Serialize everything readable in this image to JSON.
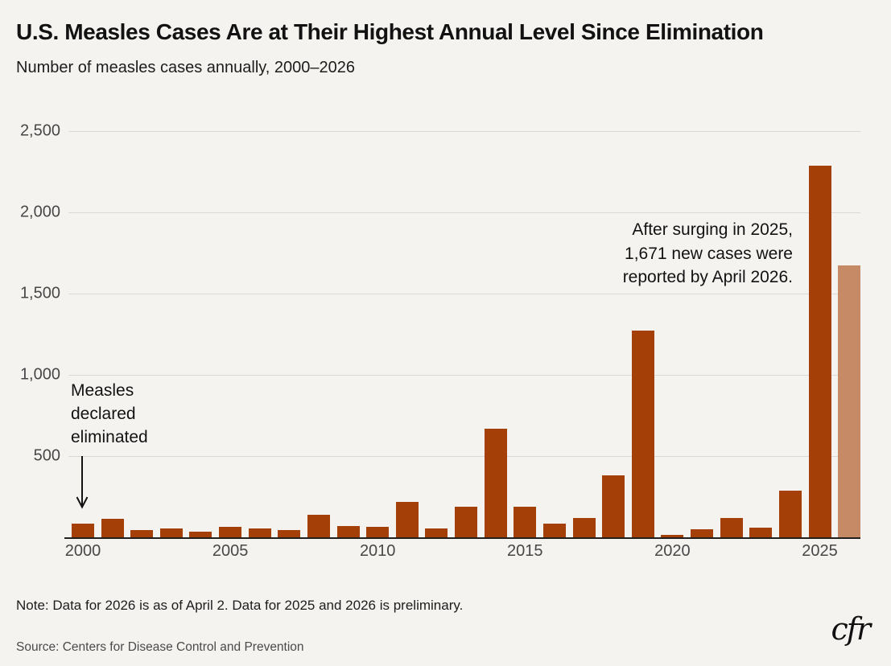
{
  "header": {
    "title": "U.S. Measles Cases Are at Their Highest Annual Level Since Elimination",
    "subtitle": "Number of measles cases annually, 2000–2026"
  },
  "chart_data": {
    "type": "bar",
    "title": "U.S. Measles Cases Are at Their Highest Annual Level Since Elimination",
    "subtitle": "Number of measles cases annually, 2000–2026",
    "x": [
      2000,
      2001,
      2002,
      2003,
      2004,
      2005,
      2006,
      2007,
      2008,
      2009,
      2010,
      2011,
      2012,
      2013,
      2014,
      2015,
      2016,
      2017,
      2018,
      2019,
      2020,
      2021,
      2022,
      2023,
      2024,
      2025,
      2026
    ],
    "values": [
      86,
      116,
      44,
      56,
      37,
      66,
      55,
      43,
      140,
      71,
      63,
      220,
      55,
      187,
      667,
      188,
      86,
      120,
      381,
      1274,
      13,
      49,
      121,
      59,
      285,
      2285,
      1671
    ],
    "xlabel": "",
    "ylabel": "",
    "ylim": [
      0,
      2500
    ],
    "ytick_values": [
      500,
      1000,
      1500,
      2000,
      2500
    ],
    "ytick_labels": [
      "500",
      "1,000",
      "1,500",
      "2,000",
      "2,500"
    ],
    "xtick_indices": [
      0,
      5,
      10,
      15,
      20,
      25
    ],
    "xtick_labels": [
      "2000",
      "2005",
      "2010",
      "2015",
      "2020",
      "2025"
    ],
    "grid": "horizontal",
    "legend": "none",
    "bar_color_default": "#a43f08",
    "bar_color_final_year": "#c78a66"
  },
  "annotations": {
    "eliminated": {
      "lines": [
        "Measles",
        "declared",
        "eliminated"
      ],
      "target_year": "2000"
    },
    "surge": {
      "lines": [
        "After surging in 2025,",
        "1,671 new cases were",
        "reported by April 2026."
      ]
    }
  },
  "footer": {
    "note": "Note: Data for 2026 is as of April 2. Data for 2025 and 2026 is preliminary.",
    "source": "Source: Centers for Disease Control and Prevention",
    "logo": "cfr"
  },
  "colors": {
    "background": "#f5f3f0",
    "bar_default": "#a43f08",
    "bar_final_year": "#c78a66",
    "gridline": "#dbd8d3",
    "axis_line": "#221f1c",
    "tick_text": "#474747",
    "title_text": "#121212"
  }
}
